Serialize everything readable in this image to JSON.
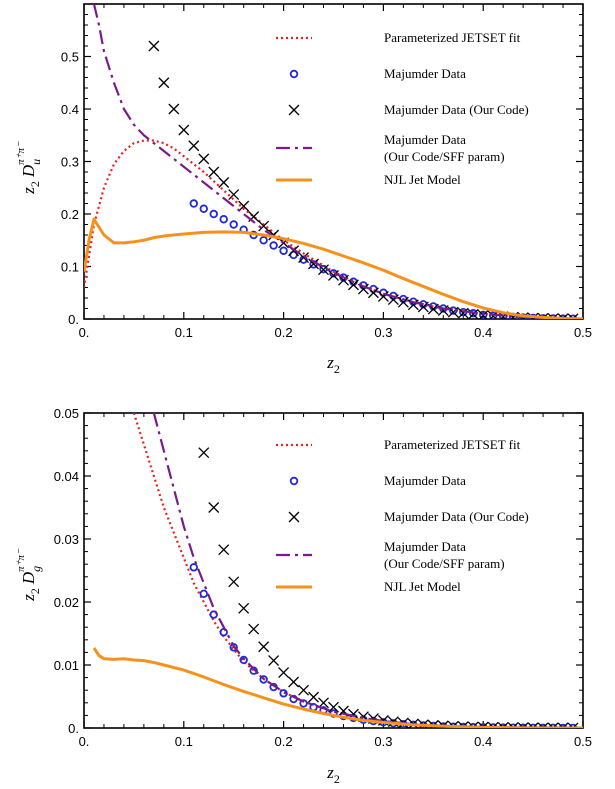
{
  "chart_data": [
    {
      "type": "line",
      "panel": "top",
      "xlabel": {
        "main": "z",
        "sub": "2"
      },
      "ylabel": {
        "pre": "z",
        "pre_sub": "2",
        "main": "D",
        "sub": "u",
        "sup": "π⁺π⁻"
      },
      "xlim": [
        0,
        0.5
      ],
      "ylim": [
        0,
        0.6
      ],
      "xticks": [
        0,
        0.1,
        0.2,
        0.3,
        0.4,
        0.5
      ],
      "xtick_labels": [
        "0.",
        "0.1",
        "0.2",
        "0.3",
        "0.4",
        "0.5"
      ],
      "yticks": [
        0,
        0.1,
        0.2,
        0.3,
        0.4,
        0.5
      ],
      "ytick_labels": [
        "0.",
        "0.1",
        "0.2",
        "0.3",
        "0.4",
        "0.5"
      ],
      "grid": false,
      "legend_position": "top-right",
      "series": [
        {
          "name": "Parameterized JETSET fit",
          "kind": "line",
          "style": "dotted",
          "color": "#e8201e",
          "x": [
            0.0,
            0.005,
            0.01,
            0.02,
            0.03,
            0.04,
            0.05,
            0.06,
            0.07,
            0.08,
            0.09,
            0.1,
            0.12,
            0.14,
            0.16,
            0.18,
            0.2,
            0.22,
            0.25,
            0.28,
            0.3,
            0.33,
            0.36,
            0.4,
            0.43,
            0.46,
            0.5
          ],
          "y": [
            0.06,
            0.12,
            0.18,
            0.25,
            0.295,
            0.32,
            0.335,
            0.34,
            0.34,
            0.335,
            0.325,
            0.31,
            0.28,
            0.245,
            0.21,
            0.18,
            0.15,
            0.125,
            0.09,
            0.063,
            0.048,
            0.032,
            0.02,
            0.01,
            0.005,
            0.002,
            0.0005
          ]
        },
        {
          "name": "Majumder Data",
          "kind": "scatter",
          "marker": "circle-open",
          "color": "#1e2ad8",
          "x": [
            0.11,
            0.12,
            0.13,
            0.14,
            0.15,
            0.16,
            0.17,
            0.18,
            0.19,
            0.2,
            0.21,
            0.22,
            0.23,
            0.24,
            0.25,
            0.26,
            0.27,
            0.28,
            0.29,
            0.3,
            0.31,
            0.32,
            0.33,
            0.34,
            0.35,
            0.36,
            0.37,
            0.38,
            0.39,
            0.4,
            0.41,
            0.42,
            0.43,
            0.44,
            0.45,
            0.46,
            0.47,
            0.48,
            0.49
          ],
          "y": [
            0.22,
            0.21,
            0.2,
            0.19,
            0.18,
            0.17,
            0.16,
            0.15,
            0.14,
            0.13,
            0.122,
            0.113,
            0.104,
            0.095,
            0.087,
            0.079,
            0.071,
            0.064,
            0.057,
            0.05,
            0.044,
            0.038,
            0.033,
            0.028,
            0.024,
            0.02,
            0.016,
            0.013,
            0.011,
            0.008,
            0.0065,
            0.005,
            0.0038,
            0.0028,
            0.002,
            0.0014,
            0.001,
            0.0007,
            0.0005
          ]
        },
        {
          "name": "Majumder Data (Our Code)",
          "kind": "scatter",
          "marker": "x",
          "color": "#000000",
          "x": [
            0.07,
            0.08,
            0.09,
            0.1,
            0.11,
            0.12,
            0.13,
            0.14,
            0.15,
            0.16,
            0.17,
            0.18,
            0.19,
            0.2,
            0.21,
            0.22,
            0.23,
            0.24,
            0.25,
            0.26,
            0.27,
            0.28,
            0.29,
            0.3,
            0.31,
            0.32,
            0.33,
            0.34,
            0.35,
            0.36,
            0.37,
            0.38,
            0.39,
            0.4,
            0.41,
            0.42,
            0.43,
            0.44,
            0.45,
            0.46,
            0.47,
            0.48,
            0.49
          ],
          "y": [
            0.52,
            0.45,
            0.4,
            0.36,
            0.33,
            0.305,
            0.28,
            0.26,
            0.237,
            0.215,
            0.195,
            0.177,
            0.16,
            0.145,
            0.13,
            0.117,
            0.105,
            0.094,
            0.083,
            0.074,
            0.065,
            0.057,
            0.05,
            0.043,
            0.037,
            0.032,
            0.027,
            0.023,
            0.019,
            0.016,
            0.013,
            0.011,
            0.009,
            0.007,
            0.0055,
            0.0043,
            0.0033,
            0.0025,
            0.0018,
            0.0013,
            0.0009,
            0.0006,
            0.0004
          ]
        },
        {
          "name": "Majumder Data (Our Code/SFF param)",
          "legend_lines": [
            "Majumder Data",
            "(Our Code/SFF param)"
          ],
          "kind": "line",
          "style": "dashdot",
          "color": "#7b1a8e",
          "x": [
            0.01,
            0.015,
            0.02,
            0.03,
            0.04,
            0.05,
            0.06,
            0.07,
            0.08,
            0.09,
            0.1,
            0.12,
            0.14,
            0.16,
            0.18,
            0.2,
            0.22,
            0.25,
            0.28,
            0.3,
            0.33,
            0.36,
            0.4,
            0.43,
            0.46,
            0.5
          ],
          "y": [
            0.6,
            0.56,
            0.51,
            0.45,
            0.4,
            0.37,
            0.35,
            0.335,
            0.32,
            0.305,
            0.29,
            0.26,
            0.23,
            0.2,
            0.17,
            0.145,
            0.12,
            0.088,
            0.062,
            0.048,
            0.032,
            0.02,
            0.01,
            0.005,
            0.002,
            0.0005
          ]
        },
        {
          "name": "NJL Jet Model",
          "kind": "line",
          "style": "solid",
          "color": "#f5921e",
          "x": [
            0.0,
            0.005,
            0.01,
            0.015,
            0.02,
            0.03,
            0.04,
            0.05,
            0.06,
            0.07,
            0.08,
            0.09,
            0.1,
            0.12,
            0.14,
            0.16,
            0.18,
            0.2,
            0.22,
            0.24,
            0.26,
            0.28,
            0.3,
            0.32,
            0.34,
            0.36,
            0.38,
            0.4,
            0.42,
            0.44,
            0.46,
            0.48,
            0.5
          ],
          "y": [
            0.09,
            0.15,
            0.19,
            0.175,
            0.16,
            0.145,
            0.145,
            0.147,
            0.15,
            0.155,
            0.158,
            0.16,
            0.162,
            0.165,
            0.166,
            0.165,
            0.16,
            0.153,
            0.144,
            0.133,
            0.12,
            0.107,
            0.093,
            0.077,
            0.062,
            0.047,
            0.033,
            0.021,
            0.012,
            0.006,
            0.003,
            0.001,
            0.0005
          ]
        }
      ]
    },
    {
      "type": "line",
      "panel": "bottom",
      "xlabel": {
        "main": "z",
        "sub": "2"
      },
      "ylabel": {
        "pre": "z",
        "pre_sub": "2",
        "main": "D",
        "sub": "g",
        "sup": "π⁺π⁻"
      },
      "xlim": [
        0,
        0.5
      ],
      "ylim": [
        0,
        0.05
      ],
      "xticks": [
        0,
        0.1,
        0.2,
        0.3,
        0.4,
        0.5
      ],
      "xtick_labels": [
        "0.",
        "0.1",
        "0.2",
        "0.3",
        "0.4",
        "0.5"
      ],
      "yticks": [
        0,
        0.01,
        0.02,
        0.03,
        0.04,
        0.05
      ],
      "ytick_labels": [
        "0.",
        "0.01",
        "0.02",
        "0.03",
        "0.04",
        "0.05"
      ],
      "grid": false,
      "legend_position": "top-right",
      "series": [
        {
          "name": "Parameterized JETSET fit",
          "kind": "line",
          "style": "dotted",
          "color": "#e8201e",
          "x": [
            0.05,
            0.06,
            0.07,
            0.08,
            0.09,
            0.1,
            0.11,
            0.12,
            0.13,
            0.14,
            0.15,
            0.16,
            0.18,
            0.2,
            0.22,
            0.25,
            0.28,
            0.3,
            0.33,
            0.36,
            0.4,
            0.45,
            0.5
          ],
          "y": [
            0.05,
            0.045,
            0.04,
            0.035,
            0.031,
            0.027,
            0.023,
            0.02,
            0.017,
            0.0145,
            0.0125,
            0.0105,
            0.0078,
            0.0057,
            0.0042,
            0.0026,
            0.0016,
            0.0011,
            0.0006,
            0.0003,
            0.00012,
            3e-05,
            0.0
          ]
        },
        {
          "name": "Majumder Data",
          "kind": "scatter",
          "marker": "circle-open",
          "color": "#1e2ad8",
          "x": [
            0.11,
            0.12,
            0.13,
            0.14,
            0.15,
            0.16,
            0.17,
            0.18,
            0.19,
            0.2,
            0.21,
            0.22,
            0.23,
            0.24,
            0.25,
            0.26,
            0.27,
            0.28,
            0.29,
            0.3,
            0.31,
            0.32,
            0.33,
            0.34,
            0.35,
            0.36,
            0.37,
            0.38,
            0.39,
            0.4,
            0.41,
            0.42,
            0.43,
            0.44,
            0.45,
            0.46,
            0.47,
            0.48,
            0.49
          ],
          "y": [
            0.0255,
            0.0213,
            0.018,
            0.0152,
            0.0128,
            0.0108,
            0.0091,
            0.0077,
            0.0065,
            0.0055,
            0.0046,
            0.0039,
            0.0033,
            0.0028,
            0.0023,
            0.0019,
            0.0016,
            0.0013,
            0.0011,
            0.0009,
            0.00075,
            0.0006,
            0.0005,
            0.0004,
            0.00032,
            0.00025,
            0.0002,
            0.00016,
            0.00012,
            0.0001,
            8e-05,
            6e-05,
            5e-05,
            4e-05,
            3e-05,
            2e-05,
            2e-05,
            1e-05,
            1e-05
          ]
        },
        {
          "name": "Majumder Data (Our Code)",
          "kind": "scatter",
          "marker": "x",
          "color": "#000000",
          "x": [
            0.12,
            0.13,
            0.14,
            0.15,
            0.16,
            0.17,
            0.18,
            0.19,
            0.2,
            0.21,
            0.22,
            0.23,
            0.24,
            0.25,
            0.26,
            0.27,
            0.28,
            0.29,
            0.3,
            0.31,
            0.32,
            0.33,
            0.34,
            0.35,
            0.36,
            0.37,
            0.38,
            0.39,
            0.4,
            0.41,
            0.42,
            0.43,
            0.44,
            0.45,
            0.46,
            0.47,
            0.48,
            0.49
          ],
          "y": [
            0.0437,
            0.035,
            0.0283,
            0.0232,
            0.019,
            0.0157,
            0.0129,
            0.0107,
            0.0088,
            0.0073,
            0.006,
            0.0049,
            0.004,
            0.0033,
            0.0027,
            0.0022,
            0.0018,
            0.0015,
            0.0012,
            0.001,
            0.0008,
            0.00065,
            0.00052,
            0.00042,
            0.00034,
            0.00027,
            0.00022,
            0.00017,
            0.00014,
            0.00011,
            9e-05,
            7e-05,
            5e-05,
            4e-05,
            3e-05,
            2e-05,
            2e-05,
            1e-05
          ]
        },
        {
          "name": "Majumder Data (Our Code/SFF param)",
          "legend_lines": [
            "Majumder Data",
            "(Our Code/SFF param)"
          ],
          "kind": "line",
          "style": "dashdot",
          "color": "#7b1a8e",
          "x": [
            0.07,
            0.08,
            0.09,
            0.1,
            0.11,
            0.12,
            0.13,
            0.14,
            0.15,
            0.16,
            0.18,
            0.2,
            0.22,
            0.25,
            0.28,
            0.3,
            0.33,
            0.36,
            0.4,
            0.45,
            0.5
          ],
          "y": [
            0.05,
            0.044,
            0.038,
            0.032,
            0.027,
            0.023,
            0.019,
            0.016,
            0.013,
            0.011,
            0.0078,
            0.0057,
            0.0042,
            0.0026,
            0.0016,
            0.0011,
            0.0006,
            0.0003,
            0.00012,
            3e-05,
            0.0
          ]
        },
        {
          "name": "NJL Jet Model",
          "kind": "line",
          "style": "solid",
          "color": "#f5921e",
          "x": [
            0.01,
            0.015,
            0.02,
            0.03,
            0.04,
            0.05,
            0.06,
            0.07,
            0.08,
            0.1,
            0.12,
            0.14,
            0.16,
            0.18,
            0.2,
            0.22,
            0.24,
            0.26,
            0.28,
            0.3,
            0.33,
            0.36,
            0.4,
            0.45,
            0.5
          ],
          "y": [
            0.0127,
            0.0115,
            0.011,
            0.0109,
            0.011,
            0.0108,
            0.0107,
            0.0104,
            0.01,
            0.0092,
            0.0081,
            0.0069,
            0.0058,
            0.0048,
            0.0038,
            0.003,
            0.0023,
            0.0017,
            0.0012,
            0.0009,
            0.0005,
            0.0003,
            0.0001,
            2e-05,
            0.0
          ]
        }
      ]
    }
  ]
}
